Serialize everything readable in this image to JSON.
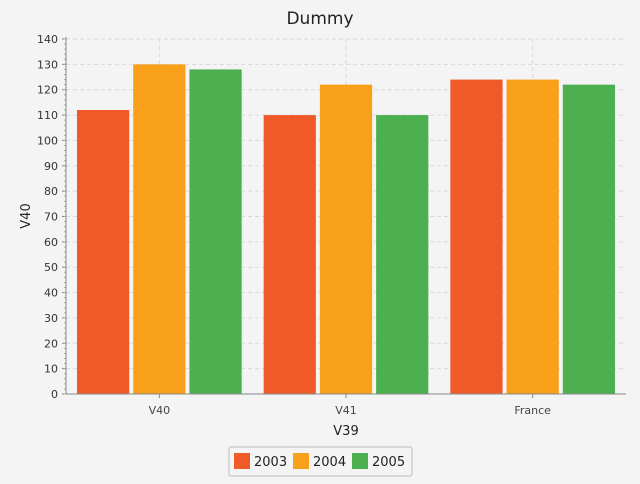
{
  "chart_data": {
    "type": "bar",
    "title": "Dummy",
    "xlabel": "V39",
    "ylabel": "V40",
    "categories": [
      "V40",
      "V41",
      "France"
    ],
    "series": [
      {
        "name": "2003",
        "color": "#f05a28",
        "values": [
          112,
          110,
          124
        ]
      },
      {
        "name": "2004",
        "color": "#f8a01a",
        "values": [
          130,
          122,
          124
        ]
      },
      {
        "name": "2005",
        "color": "#4caf50",
        "values": [
          128,
          110,
          122
        ]
      }
    ],
    "ylim": [
      0,
      140
    ],
    "ytick_step": 10,
    "grid": true,
    "legend_position": "bottom-center"
  }
}
